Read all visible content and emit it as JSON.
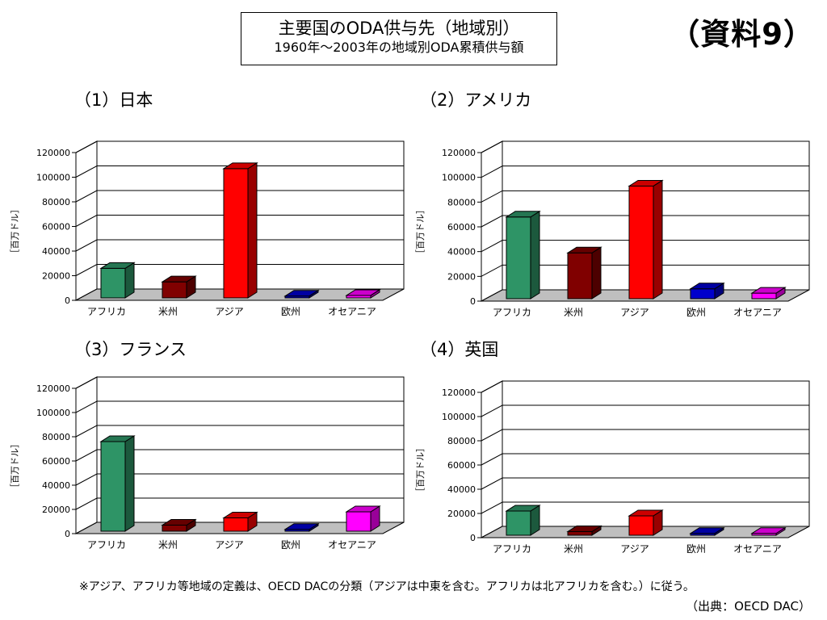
{
  "header": {
    "title": "主要国のODA供与先（地域別）",
    "subtitle": "1960年～2003年の地域別ODA累積供与額",
    "document_ref": "（資料9）"
  },
  "colors": {
    "africa": "#2e9466",
    "americas": "#800000",
    "asia": "#ff0000",
    "europe": "#0000cc",
    "oceania": "#ff00ff",
    "floor": "#bfbfbf"
  },
  "chart_data": [
    {
      "type": "bar",
      "title": "（1）日本",
      "ylabel": "［百万ドル］",
      "categories": [
        "アフリカ",
        "米州",
        "アジア",
        "欧州",
        "オセアニア"
      ],
      "values": [
        24000,
        13000,
        105000,
        1500,
        2000
      ],
      "ylim": [
        0,
        120000
      ],
      "yticks": [
        "0",
        "20000",
        "40000",
        "60000",
        "80000",
        "100000",
        "120000"
      ],
      "grid": true
    },
    {
      "type": "bar",
      "title": "（2）アメリカ",
      "ylabel": "［百万ドル］",
      "categories": [
        "アフリカ",
        "米州",
        "アジア",
        "欧州",
        "オセアニア"
      ],
      "values": [
        66000,
        37000,
        91000,
        8000,
        4500
      ],
      "ylim": [
        0,
        120000
      ],
      "yticks": [
        "0",
        "20000",
        "40000",
        "60000",
        "80000",
        "100000",
        "120000"
      ],
      "grid": true
    },
    {
      "type": "bar",
      "title": "（3）フランス",
      "ylabel": "［百万ドル］",
      "categories": [
        "アフリカ",
        "米州",
        "アジア",
        "欧州",
        "オセアニア"
      ],
      "values": [
        74000,
        5000,
        11000,
        1500,
        16000
      ],
      "ylim": [
        0,
        120000
      ],
      "yticks": [
        "0",
        "20000",
        "40000",
        "60000",
        "80000",
        "100000",
        "120000"
      ],
      "grid": true
    },
    {
      "type": "bar",
      "title": "（4）英国",
      "ylabel": "［百万ドル］",
      "categories": [
        "アフリカ",
        "米州",
        "アジア",
        "欧州",
        "オセアニア"
      ],
      "values": [
        20000,
        3000,
        16000,
        1500,
        1500
      ],
      "ylim": [
        0,
        120000
      ],
      "yticks": [
        "0",
        "20000",
        "40000",
        "60000",
        "80000",
        "100000",
        "120000"
      ],
      "grid": true
    }
  ],
  "footnote": "※アジア、アフリカ等地域の定義は、OECD DACの分類（アジアは中東を含む。アフリカは北アフリカを含む。）に従う。",
  "source": "（出典：OECD DAC）"
}
